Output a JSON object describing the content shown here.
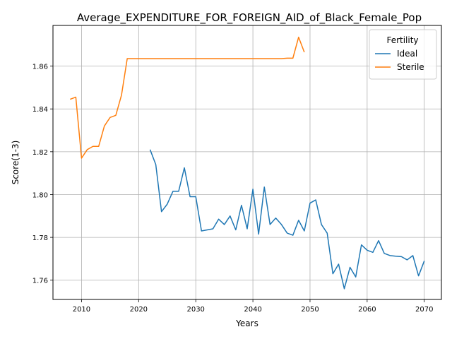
{
  "chart_data": {
    "type": "line",
    "title": "Average_EXPENDITURE_FOR_FOREIGN_AID_of_Black_Female_Pop",
    "xlabel": "Years",
    "ylabel": "Score(1-3)",
    "xlim": [
      2005,
      2073
    ],
    "ylim": [
      1.751,
      1.879
    ],
    "xticks": [
      2010,
      2020,
      2030,
      2040,
      2050,
      2060,
      2070
    ],
    "yticks": [
      1.76,
      1.78,
      1.8,
      1.82,
      1.84,
      1.86
    ],
    "xtick_labels": [
      "2010",
      "2020",
      "2030",
      "2040",
      "2050",
      "2060",
      "2070"
    ],
    "ytick_labels": [
      "1.76",
      "1.78",
      "1.80",
      "1.82",
      "1.84",
      "1.86"
    ],
    "grid": true,
    "legend": {
      "title": "Fertility",
      "placement": "top-right"
    },
    "series": [
      {
        "name": "Ideal",
        "color": "#1f77b4",
        "x": [
          2022,
          2023,
          2024,
          2025,
          2026,
          2027,
          2028,
          2029,
          2030,
          2031,
          2032,
          2033,
          2034,
          2035,
          2036,
          2037,
          2038,
          2039,
          2040,
          2041,
          2042,
          2043,
          2044,
          2045,
          2046,
          2047,
          2048,
          2049,
          2050,
          2051,
          2052,
          2053,
          2054,
          2055,
          2056,
          2057,
          2058,
          2059,
          2060,
          2061,
          2062,
          2063,
          2064,
          2065,
          2066,
          2067,
          2068,
          2069,
          2070
        ],
        "y": [
          1.821,
          1.814,
          1.792,
          1.7955,
          1.8015,
          1.8015,
          1.8125,
          1.799,
          1.799,
          1.783,
          1.7835,
          1.784,
          1.7885,
          1.786,
          1.79,
          1.7835,
          1.795,
          1.784,
          1.8025,
          1.7815,
          1.8035,
          1.786,
          1.789,
          1.786,
          1.782,
          1.781,
          1.788,
          1.783,
          1.796,
          1.7975,
          1.786,
          1.782,
          1.763,
          1.7675,
          1.756,
          1.766,
          1.7615,
          1.7765,
          1.774,
          1.773,
          1.7785,
          1.7725,
          1.7715,
          1.7712,
          1.771,
          1.7695,
          1.7715,
          1.762,
          1.769
        ]
      },
      {
        "name": "Sterile",
        "color": "#ff7f0e",
        "x": [
          2008,
          2009,
          2010,
          2011,
          2012,
          2013,
          2014,
          2015,
          2016,
          2017,
          2018,
          2019,
          2020,
          2021,
          2022,
          2023,
          2024,
          2025,
          2026,
          2027,
          2028,
          2029,
          2030,
          2031,
          2032,
          2033,
          2034,
          2035,
          2036,
          2037,
          2038,
          2039,
          2040,
          2041,
          2042,
          2043,
          2044,
          2045,
          2046,
          2047,
          2048,
          2049
        ],
        "y": [
          1.8445,
          1.8455,
          1.817,
          1.821,
          1.8225,
          1.8225,
          1.832,
          1.836,
          1.837,
          1.8465,
          1.8635,
          1.8635,
          1.8635,
          1.8635,
          1.8635,
          1.8635,
          1.8635,
          1.8635,
          1.8635,
          1.8635,
          1.8635,
          1.8635,
          1.8635,
          1.8635,
          1.8635,
          1.8635,
          1.8635,
          1.8635,
          1.8635,
          1.8635,
          1.8635,
          1.8635,
          1.8635,
          1.8635,
          1.8635,
          1.8635,
          1.8635,
          1.8635,
          1.8637,
          1.8637,
          1.8735,
          1.8665
        ]
      }
    ]
  }
}
